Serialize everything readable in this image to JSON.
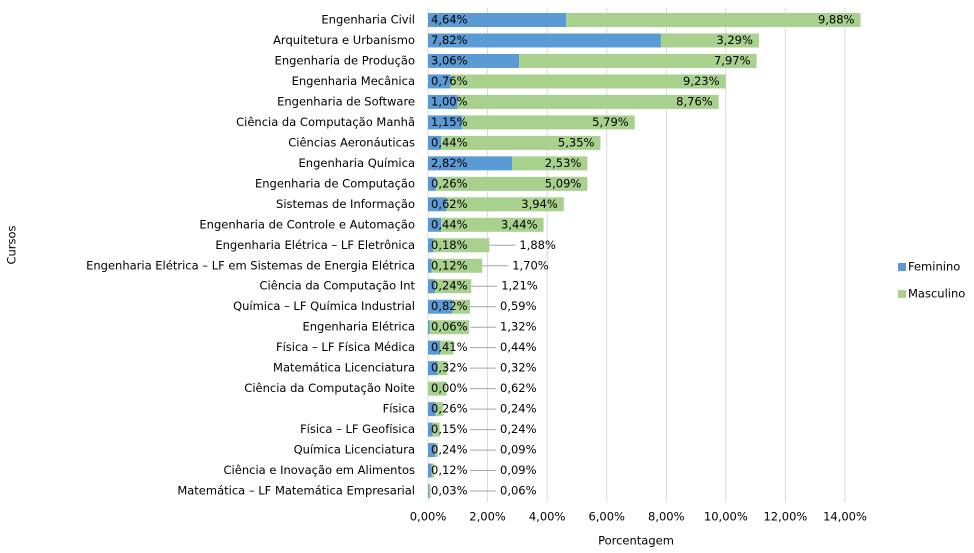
{
  "chart_data": {
    "type": "stacked_bar_horizontal",
    "x_label": "Porcentagem",
    "y_label": "Cursos",
    "categories": [
      "Engenharia Civil",
      "Arquitetura e Urbanismo",
      "Engenharia de Produção",
      "Engenharia Mecânica",
      "Engenharia de Software",
      "Ciência da Computação Manhã",
      "Ciências Aeronáuticas",
      "Engenharia Química",
      "Engenharia de Computação",
      "Sistemas de Informação",
      "Engenharia de Controle e Automação",
      "Engenharia Elétrica – LF Eletrônica",
      "Engenharia Elétrica – LF em Sistemas de Energia Elétrica",
      "Ciência da Computação Int",
      "Química – LF Química Industrial",
      "Engenharia Elétrica",
      "Física – LF Física Médica",
      "Matemática Licenciatura",
      "Ciência da Computação Noite",
      "Física",
      "Física – LF Geofísica",
      "Química Licenciatura",
      "Ciência e Inovação em Alimentos",
      "Matemática – LF Matemática Empresarial"
    ],
    "series": [
      {
        "name": "Feminino",
        "color": "#5b9bd5",
        "values": [
          4.64,
          7.82,
          3.06,
          0.76,
          1.0,
          1.15,
          0.44,
          2.82,
          0.26,
          0.62,
          0.44,
          0.18,
          0.12,
          0.24,
          0.82,
          0.06,
          0.41,
          0.32,
          0.0,
          0.26,
          0.15,
          0.24,
          0.12,
          0.03
        ],
        "value_labels": [
          "4,64%",
          "7,82%",
          "3,06%",
          "0,76%",
          "1,00%",
          "1,15%",
          "0,44%",
          "2,82%",
          "0,26%",
          "0,62%",
          "0,44%",
          "0,18%",
          "0,12%",
          "0,24%",
          "0,82%",
          "0,06%",
          "0,41%",
          "0,32%",
          "0,00%",
          "0,26%",
          "0,15%",
          "0,24%",
          "0,12%",
          "0,03%"
        ]
      },
      {
        "name": "Masculino",
        "color": "#a9d18e",
        "values": [
          9.88,
          3.29,
          7.97,
          9.23,
          8.76,
          5.79,
          5.35,
          2.53,
          5.09,
          3.94,
          3.44,
          1.88,
          1.7,
          1.21,
          0.59,
          1.32,
          0.44,
          0.32,
          0.62,
          0.24,
          0.24,
          0.09,
          0.09,
          0.06
        ],
        "value_labels": [
          "9,88%",
          "3,29%",
          "7,97%",
          "9,23%",
          "8,76%",
          "5,79%",
          "5,35%",
          "2,53%",
          "5,09%",
          "3,94%",
          "3,44%",
          "1,88%",
          "1,70%",
          "1,21%",
          "0,59%",
          "1,32%",
          "0,44%",
          "0,32%",
          "0,62%",
          "0,24%",
          "0,24%",
          "0,09%",
          "0,09%",
          "0,06%"
        ]
      }
    ],
    "xlim": [
      0,
      14
    ],
    "xticks": [
      {
        "value": 0,
        "label": "0,00%"
      },
      {
        "value": 2,
        "label": "2,00%"
      },
      {
        "value": 4,
        "label": "4,00%"
      },
      {
        "value": 6,
        "label": "6,00%"
      },
      {
        "value": 8,
        "label": "8,00%"
      },
      {
        "value": 10,
        "label": "10,00%"
      },
      {
        "value": 12,
        "label": "12,00%"
      },
      {
        "value": 14,
        "label": "14,00%"
      }
    ],
    "grid": true,
    "legend": "right"
  }
}
